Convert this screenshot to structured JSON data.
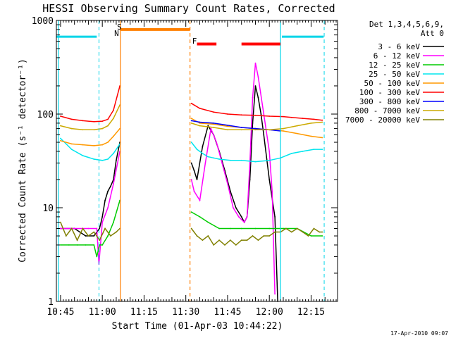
{
  "chart_data": {
    "type": "line",
    "title": "HESSI Observing Summary Count Rates, Corrected",
    "xlabel": "Start Time (01-Apr-03 10:44:22)",
    "ylabel": "Corrected Count Rate (s⁻¹ detector⁻¹)",
    "yscale": "log",
    "ylim": [
      1,
      1000
    ],
    "xlim_minutes_after_1040": [
      3.5,
      104.5
    ],
    "xticks": [
      "10:45",
      "11:00",
      "11:15",
      "11:30",
      "11:45",
      "12:00",
      "12:15"
    ],
    "xtick_minutes_after_1040": [
      5,
      20,
      35,
      50,
      65,
      80,
      95
    ],
    "yticks": [
      "1",
      "10",
      "100",
      "1000"
    ],
    "ytick_values": [
      1,
      10,
      100,
      1000
    ],
    "legend_title": [
      "Det 1,3,4,5,6,9,",
      "Att 0"
    ],
    "legend_position": "right",
    "grid": false,
    "timestamp": "17-Apr-2010 09:07",
    "flags": {
      "S": {
        "label": "S",
        "color": "#ff7f00"
      },
      "N": {
        "label": "N",
        "color": "#00d5e8"
      },
      "F": {
        "label": "F",
        "color": "#ff0000"
      }
    },
    "gap": {
      "start": 26.5,
      "end": 51.5,
      "flare_flag_level": 800
    },
    "series": [
      {
        "name": "3 - 6 keV",
        "color": "#000000",
        "x": [
          5,
          10,
          14,
          17,
          19,
          20,
          21,
          22,
          23,
          24,
          25,
          26.3,
          52,
          53,
          54,
          56,
          58,
          60,
          62,
          64,
          66,
          68,
          70,
          71,
          72,
          73,
          74,
          75,
          76,
          77,
          78,
          80,
          82,
          83
        ],
        "y": [
          6,
          6,
          5,
          5,
          6,
          8,
          12,
          15,
          17,
          20,
          32,
          50,
          30,
          25,
          20,
          45,
          75,
          60,
          40,
          25,
          15,
          10,
          8,
          7,
          8,
          20,
          80,
          200,
          150,
          100,
          60,
          20,
          8,
          1
        ]
      },
      {
        "name": "6 - 12 keV",
        "color": "#ff00ff",
        "x": [
          5,
          15,
          18,
          18.8,
          20,
          22,
          24,
          26.3,
          52,
          53,
          55,
          57,
          59,
          61,
          63,
          65,
          67,
          69,
          71,
          72,
          73,
          74,
          75,
          76,
          78,
          80,
          81,
          82
        ],
        "y": [
          6,
          6,
          6,
          2.5,
          7,
          10,
          18,
          40,
          20,
          15,
          12,
          30,
          70,
          50,
          30,
          18,
          10,
          8,
          7,
          8,
          30,
          150,
          350,
          250,
          100,
          40,
          15,
          1.2
        ]
      },
      {
        "name": "12 - 25 keV",
        "color": "#00cc00",
        "x": [
          5,
          8,
          11,
          14,
          17,
          18,
          19,
          20,
          22,
          24,
          26.3,
          52,
          55,
          58,
          62,
          66,
          70,
          75,
          80,
          85,
          90,
          95,
          99
        ],
        "y": [
          4,
          4,
          4,
          4,
          4,
          3,
          4,
          4,
          5,
          7,
          12,
          9,
          8,
          7,
          6,
          6,
          6,
          6,
          6,
          6,
          6,
          5,
          5
        ]
      },
      {
        "name": "25 - 50 keV",
        "color": "#00e5ee",
        "x": [
          5,
          9,
          13,
          17,
          20,
          22,
          24,
          26.3,
          52,
          54,
          56,
          58,
          60,
          62,
          66,
          70,
          75,
          80,
          84,
          88,
          92,
          96,
          99
        ],
        "y": [
          55,
          42,
          36,
          33,
          32,
          33,
          38,
          48,
          50,
          42,
          38,
          35,
          34,
          33,
          32,
          32,
          31,
          32,
          34,
          38,
          40,
          42,
          42
        ]
      },
      {
        "name": "50 - 100 keV",
        "color": "#ff9900",
        "x": [
          5,
          9,
          13,
          17,
          20,
          22,
          24,
          26.3,
          52,
          55,
          60,
          65,
          70,
          75,
          80,
          85,
          90,
          95,
          99
        ],
        "y": [
          52,
          48,
          47,
          46,
          47,
          50,
          58,
          70,
          90,
          80,
          78,
          74,
          72,
          70,
          68,
          66,
          62,
          58,
          56
        ]
      },
      {
        "name": "100 - 300 keV",
        "color": "#ff0000",
        "x": [
          5,
          9,
          13,
          17,
          20,
          22,
          24,
          26.3,
          52,
          55,
          60,
          65,
          70,
          75,
          80,
          85,
          88,
          92,
          96,
          99
        ],
        "y": [
          95,
          88,
          85,
          83,
          84,
          88,
          110,
          200,
          130,
          115,
          105,
          100,
          98,
          97,
          95,
          94,
          92,
          90,
          88,
          86
        ]
      },
      {
        "name": "300 - 800 keV",
        "color": "#0000ff",
        "x": [
          52,
          55,
          60,
          65,
          70,
          75,
          80,
          84
        ],
        "y": [
          85,
          82,
          80,
          76,
          72,
          70,
          68,
          66
        ]
      },
      {
        "name": "800 - 7000 keV",
        "color": "#ccaa00",
        "x": [
          5,
          9,
          13,
          17,
          20,
          22,
          24,
          26.3,
          52,
          55,
          60,
          65,
          70,
          75,
          80,
          85,
          90,
          95,
          99
        ],
        "y": [
          75,
          70,
          68,
          68,
          70,
          75,
          90,
          125,
          80,
          75,
          72,
          68,
          68,
          68,
          68,
          70,
          75,
          80,
          82
        ]
      },
      {
        "name": "7000 - 20000 keV",
        "color": "#808000",
        "x": [
          5,
          7,
          9,
          11,
          13,
          15,
          17,
          19,
          21,
          23,
          25,
          26.3,
          52,
          54,
          56,
          58,
          60,
          62,
          64,
          66,
          68,
          70,
          72,
          74,
          76,
          78,
          80,
          82,
          84,
          86,
          88,
          90,
          92,
          94,
          96,
          98,
          99
        ],
        "y": [
          7,
          5,
          6,
          4.5,
          6,
          5,
          5.5,
          4.5,
          6,
          5,
          5.5,
          6,
          6,
          5,
          4.5,
          5,
          4,
          4.5,
          4,
          4.5,
          4,
          4.5,
          4.5,
          5,
          4.5,
          5,
          5,
          5.5,
          5.5,
          6,
          5.5,
          6,
          5.5,
          5,
          6,
          5.5,
          5.5
        ]
      }
    ]
  }
}
